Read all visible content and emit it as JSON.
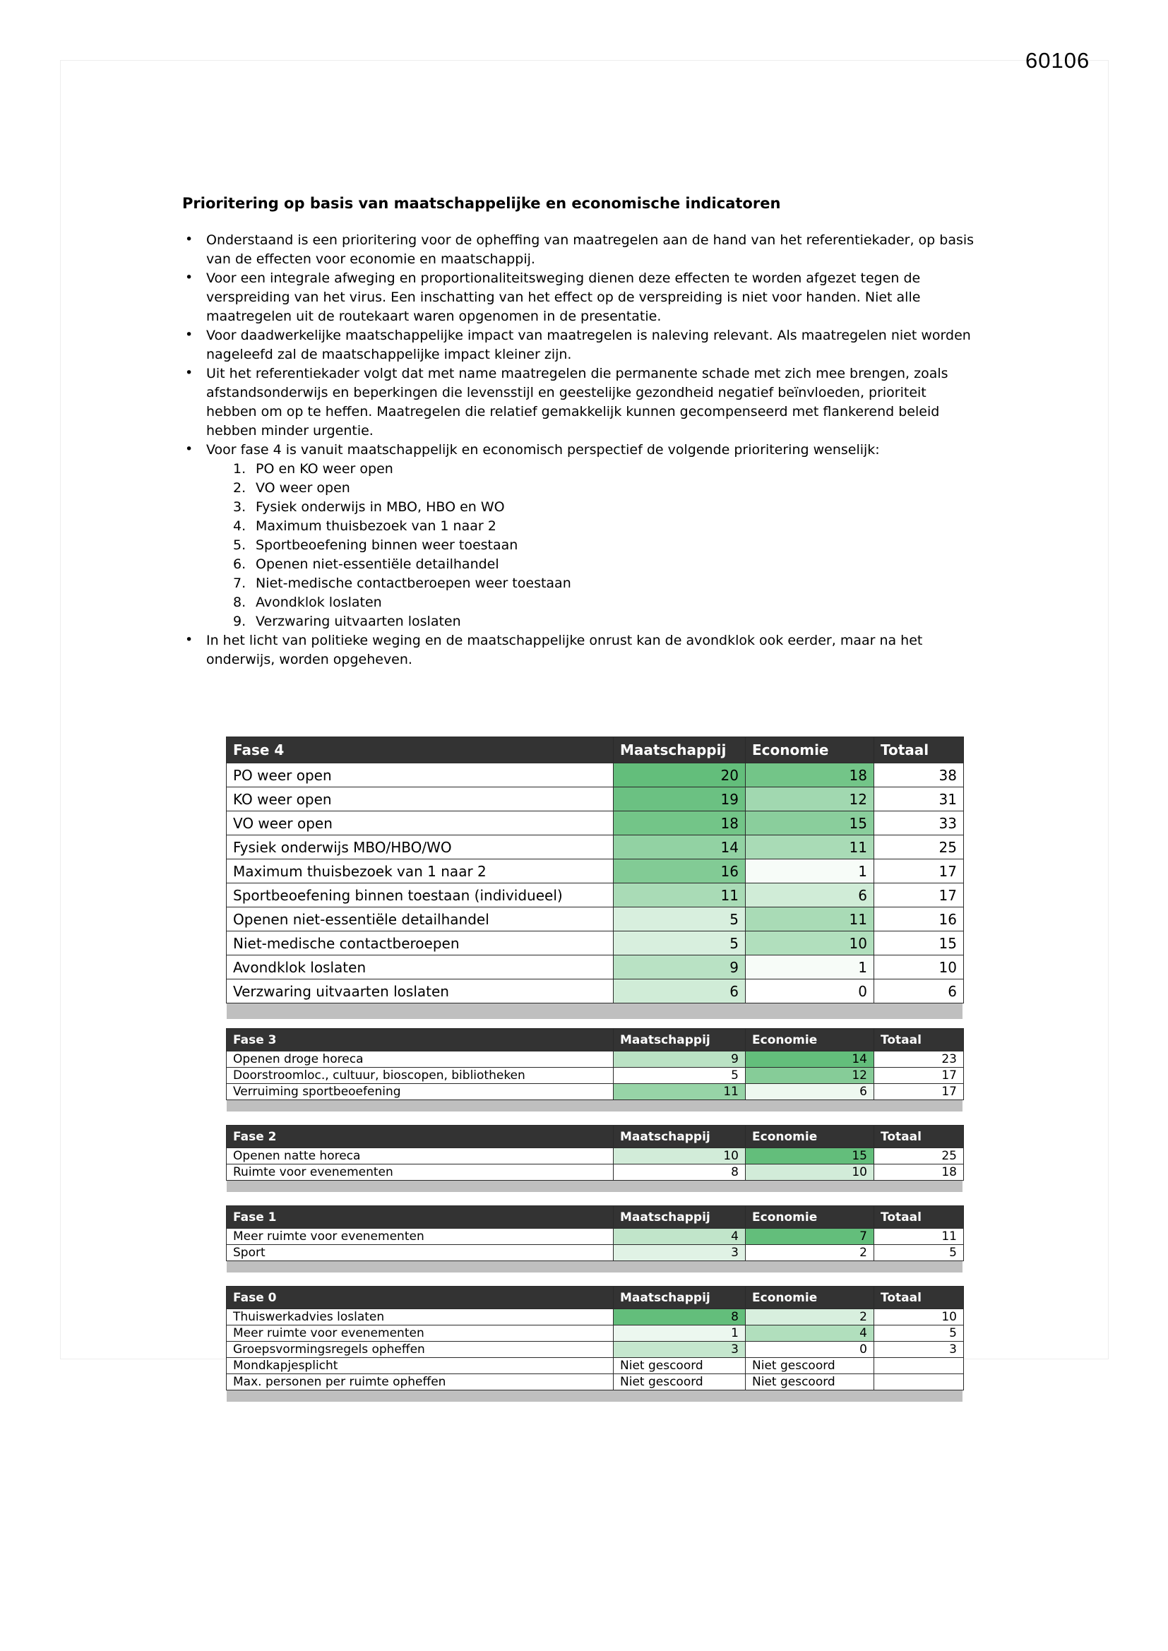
{
  "page_number": "60106",
  "title": "Prioritering op basis van maatschappelijke en economische indicatoren",
  "bullets": [
    {
      "text": "Onderstaand is een prioritering voor de opheffing van maatregelen aan de hand van het referentiekader, op basis van de effecten voor economie en maatschappij."
    },
    {
      "text": "Voor een integrale afweging en proportionaliteitsweging dienen deze effecten te worden afgezet tegen de verspreiding van het virus. Een inschatting van het effect op de verspreiding is niet voor handen. Niet alle maatregelen uit de routekaart waren opgenomen in de presentatie."
    },
    {
      "text": "Voor daadwerkelijke maatschappelijke impact van maatregelen is naleving relevant. Als maatregelen niet worden nageleefd zal de maatschappelijke impact kleiner zijn."
    },
    {
      "text": "Uit het referentiekader volgt dat met name maatregelen die permanente schade met zich mee brengen, zoals afstandsonderwijs en beperkingen die levensstijl en geestelijke gezondheid negatief beïnvloeden, prioriteit hebben om op te heffen. Maatregelen die relatief gemakkelijk kunnen gecompenseerd met flankerend beleid hebben minder urgentie."
    },
    {
      "text": "Voor fase 4 is vanuit maatschappelijk en economisch perspectief de volgende prioritering wenselijk:",
      "list": [
        "PO en KO weer open",
        "VO weer open",
        "Fysiek onderwijs in MBO, HBO en WO",
        "Maximum thuisbezoek van 1 naar 2",
        "Sportbeoefening binnen weer toestaan",
        "Openen niet-essentiële detailhandel",
        "Niet-medische contactberoepen weer toestaan",
        "Avondklok loslaten",
        "Verzwaring uitvaarten loslaten"
      ]
    },
    {
      "text": "In het licht van politieke weging en de maatschappelijke onrust kan de avondklok ook eerder, maar na het onderwijs, worden opgeheven."
    }
  ],
  "tables": [
    {
      "title": "Fase 4",
      "size": "large",
      "columns": [
        "Maatschappij",
        "Economie",
        "Totaal"
      ],
      "rows": [
        [
          "PO weer open",
          20,
          18,
          38
        ],
        [
          "KO weer open",
          19,
          12,
          31
        ],
        [
          "VO weer open",
          18,
          15,
          33
        ],
        [
          "Fysiek onderwijs MBO/HBO/WO",
          14,
          11,
          25
        ],
        [
          "Maximum thuisbezoek van 1 naar 2",
          16,
          1,
          17
        ],
        [
          "Sportbeoefening binnen toestaan (individueel)",
          11,
          6,
          17
        ],
        [
          "Openen niet-essentiële detailhandel",
          5,
          11,
          16
        ],
        [
          "Niet-medische contactberoepen",
          5,
          10,
          15
        ],
        [
          "Avondklok loslaten",
          9,
          1,
          10
        ],
        [
          "Verzwaring uitvaarten loslaten",
          6,
          0,
          6
        ]
      ]
    },
    {
      "title": "Fase 3",
      "size": "small",
      "columns": [
        "Maatschappij",
        "Economie",
        "Totaal"
      ],
      "rows": [
        [
          "Openen droge horeca",
          9,
          14,
          23
        ],
        [
          "Doorstroomloc., cultuur, bioscopen, bibliotheken",
          5,
          12,
          17
        ],
        [
          "Verruiming sportbeoefening",
          11,
          6,
          17
        ]
      ]
    },
    {
      "title": "Fase 2",
      "size": "small",
      "columns": [
        "Maatschappij",
        "Economie",
        "Totaal"
      ],
      "rows": [
        [
          "Openen natte horeca",
          10,
          15,
          25
        ],
        [
          "Ruimte voor evenementen",
          8,
          10,
          18
        ]
      ]
    },
    {
      "title": "Fase 1",
      "size": "small",
      "columns": [
        "Maatschappij",
        "Economie",
        "Totaal"
      ],
      "rows": [
        [
          "Meer ruimte voor evenementen",
          4,
          7,
          11
        ],
        [
          "Sport",
          3,
          2,
          5
        ]
      ]
    },
    {
      "title": "Fase 0",
      "size": "small",
      "columns": [
        "Maatschappij",
        "Economie",
        "Totaal"
      ],
      "rows": [
        [
          "Thuiswerkadvies loslaten",
          8,
          2,
          10
        ],
        [
          "Meer ruimte voor evenementen",
          1,
          4,
          5
        ],
        [
          "Groepsvormingsregels opheffen",
          3,
          0,
          3
        ],
        [
          "Mondkapjesplicht",
          "Niet gescoord",
          "Niet gescoord",
          ""
        ],
        [
          "Max. personen per ruimte opheffen",
          "Niet gescoord",
          "Niet gescoord",
          ""
        ]
      ]
    }
  ],
  "colors": {
    "table_header_bg": "#333333",
    "green_scale_max": "#63be7b",
    "green_scale_min": "#ffffff",
    "separator_gray": "#bfbfbf"
  }
}
